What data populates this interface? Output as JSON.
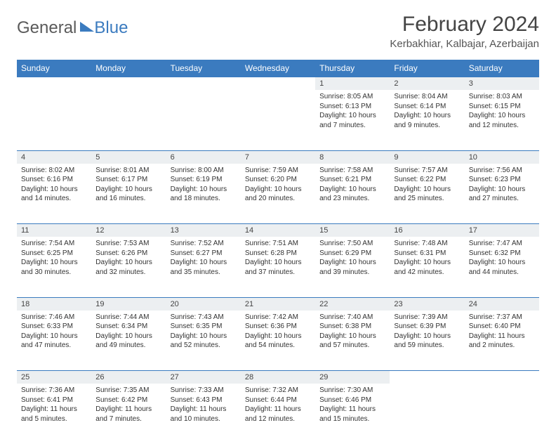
{
  "brand": {
    "part1": "General",
    "part2": "Blue"
  },
  "title": "February 2024",
  "location": "Kerbakhiar, Kalbajar, Azerbaijan",
  "colors": {
    "header_bg": "#3b7bbf",
    "daynum_bg": "#eceff1",
    "text": "#333333",
    "page_bg": "#ffffff"
  },
  "weekdays": [
    "Sunday",
    "Monday",
    "Tuesday",
    "Wednesday",
    "Thursday",
    "Friday",
    "Saturday"
  ],
  "weeks": [
    [
      null,
      null,
      null,
      null,
      {
        "n": "1",
        "sr": "8:05 AM",
        "ss": "6:13 PM",
        "dl": "10 hours and 7 minutes."
      },
      {
        "n": "2",
        "sr": "8:04 AM",
        "ss": "6:14 PM",
        "dl": "10 hours and 9 minutes."
      },
      {
        "n": "3",
        "sr": "8:03 AM",
        "ss": "6:15 PM",
        "dl": "10 hours and 12 minutes."
      }
    ],
    [
      {
        "n": "4",
        "sr": "8:02 AM",
        "ss": "6:16 PM",
        "dl": "10 hours and 14 minutes."
      },
      {
        "n": "5",
        "sr": "8:01 AM",
        "ss": "6:17 PM",
        "dl": "10 hours and 16 minutes."
      },
      {
        "n": "6",
        "sr": "8:00 AM",
        "ss": "6:19 PM",
        "dl": "10 hours and 18 minutes."
      },
      {
        "n": "7",
        "sr": "7:59 AM",
        "ss": "6:20 PM",
        "dl": "10 hours and 20 minutes."
      },
      {
        "n": "8",
        "sr": "7:58 AM",
        "ss": "6:21 PM",
        "dl": "10 hours and 23 minutes."
      },
      {
        "n": "9",
        "sr": "7:57 AM",
        "ss": "6:22 PM",
        "dl": "10 hours and 25 minutes."
      },
      {
        "n": "10",
        "sr": "7:56 AM",
        "ss": "6:23 PM",
        "dl": "10 hours and 27 minutes."
      }
    ],
    [
      {
        "n": "11",
        "sr": "7:54 AM",
        "ss": "6:25 PM",
        "dl": "10 hours and 30 minutes."
      },
      {
        "n": "12",
        "sr": "7:53 AM",
        "ss": "6:26 PM",
        "dl": "10 hours and 32 minutes."
      },
      {
        "n": "13",
        "sr": "7:52 AM",
        "ss": "6:27 PM",
        "dl": "10 hours and 35 minutes."
      },
      {
        "n": "14",
        "sr": "7:51 AM",
        "ss": "6:28 PM",
        "dl": "10 hours and 37 minutes."
      },
      {
        "n": "15",
        "sr": "7:50 AM",
        "ss": "6:29 PM",
        "dl": "10 hours and 39 minutes."
      },
      {
        "n": "16",
        "sr": "7:48 AM",
        "ss": "6:31 PM",
        "dl": "10 hours and 42 minutes."
      },
      {
        "n": "17",
        "sr": "7:47 AM",
        "ss": "6:32 PM",
        "dl": "10 hours and 44 minutes."
      }
    ],
    [
      {
        "n": "18",
        "sr": "7:46 AM",
        "ss": "6:33 PM",
        "dl": "10 hours and 47 minutes."
      },
      {
        "n": "19",
        "sr": "7:44 AM",
        "ss": "6:34 PM",
        "dl": "10 hours and 49 minutes."
      },
      {
        "n": "20",
        "sr": "7:43 AM",
        "ss": "6:35 PM",
        "dl": "10 hours and 52 minutes."
      },
      {
        "n": "21",
        "sr": "7:42 AM",
        "ss": "6:36 PM",
        "dl": "10 hours and 54 minutes."
      },
      {
        "n": "22",
        "sr": "7:40 AM",
        "ss": "6:38 PM",
        "dl": "10 hours and 57 minutes."
      },
      {
        "n": "23",
        "sr": "7:39 AM",
        "ss": "6:39 PM",
        "dl": "10 hours and 59 minutes."
      },
      {
        "n": "24",
        "sr": "7:37 AM",
        "ss": "6:40 PM",
        "dl": "11 hours and 2 minutes."
      }
    ],
    [
      {
        "n": "25",
        "sr": "7:36 AM",
        "ss": "6:41 PM",
        "dl": "11 hours and 5 minutes."
      },
      {
        "n": "26",
        "sr": "7:35 AM",
        "ss": "6:42 PM",
        "dl": "11 hours and 7 minutes."
      },
      {
        "n": "27",
        "sr": "7:33 AM",
        "ss": "6:43 PM",
        "dl": "11 hours and 10 minutes."
      },
      {
        "n": "28",
        "sr": "7:32 AM",
        "ss": "6:44 PM",
        "dl": "11 hours and 12 minutes."
      },
      {
        "n": "29",
        "sr": "7:30 AM",
        "ss": "6:46 PM",
        "dl": "11 hours and 15 minutes."
      },
      null,
      null
    ]
  ],
  "labels": {
    "sunrise": "Sunrise:",
    "sunset": "Sunset:",
    "daylight": "Daylight:"
  }
}
